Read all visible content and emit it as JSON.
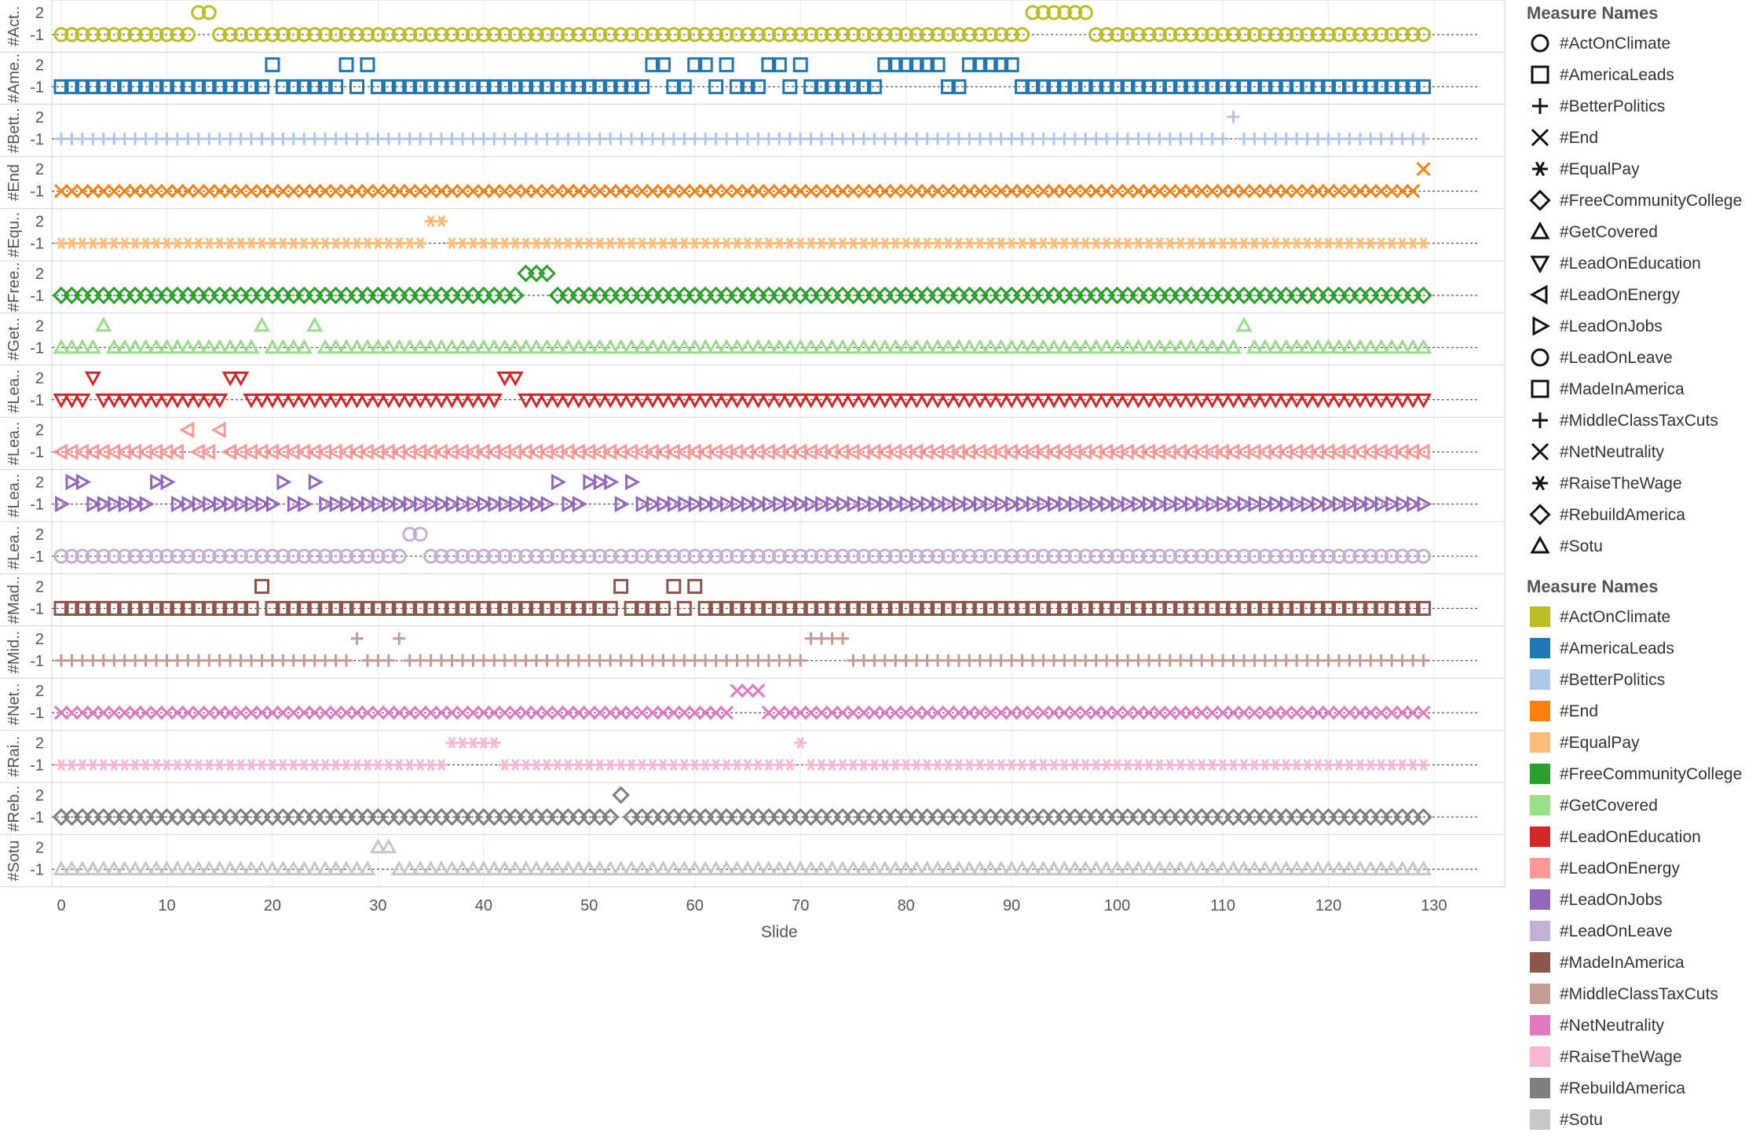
{
  "chart_data": {
    "type": "scatter",
    "xlabel": "Slide",
    "x_range": [
      0,
      130
    ],
    "x_ticks": [
      0,
      10,
      20,
      30,
      40,
      50,
      60,
      70,
      80,
      90,
      100,
      110,
      120,
      130
    ],
    "y_ticks": [
      2,
      -1
    ],
    "y_range": [
      -1,
      2
    ],
    "x_points": [
      0,
      129
    ],
    "grid": true,
    "reference_line": {
      "y": -1,
      "style": "dashed"
    },
    "series": [
      {
        "row_label": "#Act..",
        "name": "#ActOnClimate",
        "shape": "circle",
        "color": "#bcbd22",
        "high_x": [
          13,
          14,
          92,
          93,
          94,
          95,
          96,
          97
        ]
      },
      {
        "row_label": "#Ame..",
        "name": "#AmericaLeads",
        "shape": "square",
        "color": "#1f77b4",
        "high_x": [
          20,
          27,
          29,
          56,
          57,
          60,
          61,
          63,
          67,
          68,
          70,
          78,
          79,
          80,
          81,
          82,
          83,
          86,
          87,
          88,
          89,
          90
        ]
      },
      {
        "row_label": "#Bett..",
        "name": "#BetterPolitics",
        "shape": "plus",
        "color": "#aec7e8",
        "high_x": [
          111
        ]
      },
      {
        "row_label": "#End",
        "name": "#End",
        "shape": "cross",
        "color": "#ff7f0e",
        "high_x": [
          129
        ]
      },
      {
        "row_label": "#Equ..",
        "name": "#EqualPay",
        "shape": "asterisk",
        "color": "#ffbb78",
        "high_x": [
          35,
          36
        ]
      },
      {
        "row_label": "#Free..",
        "name": "#FreeCommunityCollege",
        "shape": "diamond",
        "color": "#2ca02c",
        "high_x": [
          44,
          45,
          46
        ]
      },
      {
        "row_label": "#Get..",
        "name": "#GetCovered",
        "shape": "triangle-up",
        "color": "#98df8a",
        "high_x": [
          4,
          19,
          24,
          112
        ]
      },
      {
        "row_label": "#Lea..",
        "name": "#LeadOnEducation",
        "shape": "triangle-down",
        "color": "#d62728",
        "high_x": [
          3,
          16,
          17,
          42,
          43
        ]
      },
      {
        "row_label": "#Lea..",
        "name": "#LeadOnEnergy",
        "shape": "triangle-left",
        "color": "#ff9896",
        "high_x": [
          12,
          15
        ]
      },
      {
        "row_label": "#Lea..",
        "name": "#LeadOnJobs",
        "shape": "triangle-right",
        "color": "#9467bd",
        "high_x": [
          1,
          2,
          9,
          10,
          21,
          24,
          47,
          50,
          51,
          52,
          54
        ]
      },
      {
        "row_label": "#Lea..",
        "name": "#LeadOnLeave",
        "shape": "circle",
        "color": "#c5b0d5",
        "high_x": [
          33,
          34
        ]
      },
      {
        "row_label": "#Mad..",
        "name": "#MadeInAmerica",
        "shape": "square",
        "color": "#8c564b",
        "high_x": [
          19,
          53,
          58,
          60
        ]
      },
      {
        "row_label": "#Mid..",
        "name": "#MiddleClassTaxCuts",
        "shape": "plus",
        "color": "#c49c94",
        "high_x": [
          28,
          32,
          71,
          72,
          73,
          74
        ]
      },
      {
        "row_label": "#Net..",
        "name": "#NetNeutrality",
        "shape": "cross",
        "color": "#e377c2",
        "high_x": [
          64,
          65,
          66
        ]
      },
      {
        "row_label": "#Rai..",
        "name": "#RaiseTheWage",
        "shape": "asterisk",
        "color": "#f7b6d2",
        "high_x": [
          37,
          38,
          39,
          40,
          41,
          70
        ]
      },
      {
        "row_label": "#Reb..",
        "name": "#RebuildAmerica",
        "shape": "diamond",
        "color": "#7f7f7f",
        "high_x": [
          53
        ]
      },
      {
        "row_label": "#Sotu",
        "name": "#Sotu",
        "shape": "triangle-up",
        "color": "#c7c7c7",
        "high_x": [
          30,
          31
        ]
      }
    ],
    "legend": {
      "position": "right",
      "shape_title": "Measure Names",
      "color_title": "Measure Names"
    }
  }
}
